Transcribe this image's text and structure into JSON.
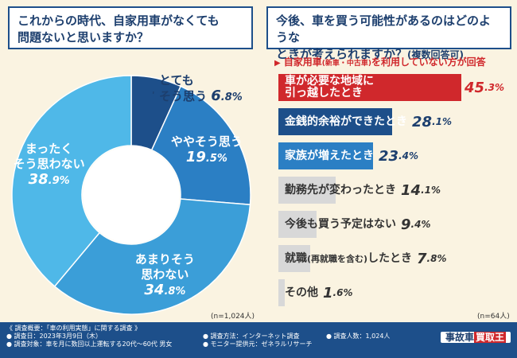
{
  "left": {
    "question_line1": "これからの時代、自家用車がなくても",
    "question_line2": "問題ないと思いますか？",
    "n_note": "(n=1,024人)"
  },
  "right": {
    "question_line1": "今後、車を買う可能性があるのはどのような",
    "question_line2": "ときが考えられますか？",
    "question_sub": "(複数回答可)",
    "condition_marker": "▶",
    "condition_a": "自家用車",
    "condition_paren": "(新車・中古車)",
    "condition_b": "を利用していない方が回答",
    "n_note": "(n=64人)"
  },
  "chart_data": [
    {
      "type": "pie",
      "style": "donut",
      "labels": [
        "とてもそう思う",
        "ややそう思う",
        "あまりそう思わない",
        "まったくそう思わない"
      ],
      "values": [
        6.8,
        19.5,
        34.8,
        38.9
      ],
      "label_lines": [
        [
          "とても",
          "そう思う"
        ],
        [
          "ややそう思う"
        ],
        [
          "あまりそう",
          "思わない"
        ],
        [
          "まったく",
          "そう思わない"
        ]
      ],
      "value_text": [
        {
          "int": "6",
          "dec": ".8%"
        },
        {
          "int": "19",
          "dec": ".5%"
        },
        {
          "int": "34",
          "dec": ".8%"
        },
        {
          "int": "38",
          "dec": ".9%"
        }
      ],
      "colors": [
        "#1d4f8a",
        "#2b7fc4",
        "#3b9ed8",
        "#4fb8e8"
      ]
    },
    {
      "type": "bar",
      "orientation": "horizontal",
      "categories": [
        "車が必要な地域に引っ越したとき",
        "金銭的余裕ができたとき",
        "家族が増えたとき",
        "勤務先が変わったとき",
        "今後も買う予定はない",
        "就職(再就職を含む)したとき",
        "その他"
      ],
      "values": [
        45.3,
        28.1,
        23.4,
        14.1,
        9.4,
        7.8,
        1.6
      ],
      "unit": "%",
      "label_parts": [
        {
          "a": "車が必要な地域に",
          "b": "引っ越したとき",
          "paren": ""
        },
        {
          "a": "金銭的余裕ができたとき",
          "b": "",
          "paren": ""
        },
        {
          "a": "家族が増えたとき",
          "b": "",
          "paren": ""
        },
        {
          "a": "勤務先が変わったとき",
          "b": "",
          "paren": ""
        },
        {
          "a": "今後も買う予定はない",
          "b": "",
          "paren": ""
        },
        {
          "a": "就職",
          "b": "したとき",
          "paren": "(再就職を含む)"
        },
        {
          "a": "その他",
          "b": "",
          "paren": ""
        }
      ],
      "value_text": [
        {
          "int": "45",
          "dec": ".3%"
        },
        {
          "int": "28",
          "dec": ".1%"
        },
        {
          "int": "23",
          "dec": ".4%"
        },
        {
          "int": "14",
          "dec": ".1%"
        },
        {
          "int": "9",
          "dec": ".4%"
        },
        {
          "int": "7",
          "dec": ".8%"
        },
        {
          "int": "1",
          "dec": ".6%"
        }
      ],
      "colors": [
        "#d0282c",
        "#1d4f8a",
        "#2b7fc4",
        "#d8d8d8",
        "#d8d8d8",
        "#d8d8d8",
        "#d8d8d8"
      ],
      "xlim": [
        0,
        50
      ]
    }
  ],
  "footer": {
    "line1": "《 調査概要：「車の利用実態」に関する調査 》",
    "line2": "● 調査日：2023年3月9日（木）",
    "line3": "● 調査対象：車を月に数回以上運転する20代〜60代 男女",
    "line4": "● 調査方法：インターネット調査",
    "line5": "● モニター提供元：ゼネラルリサーチ",
    "line6": "● 調査人数：1,024人",
    "logo_a": "事故車",
    "logo_b": "買取王"
  }
}
